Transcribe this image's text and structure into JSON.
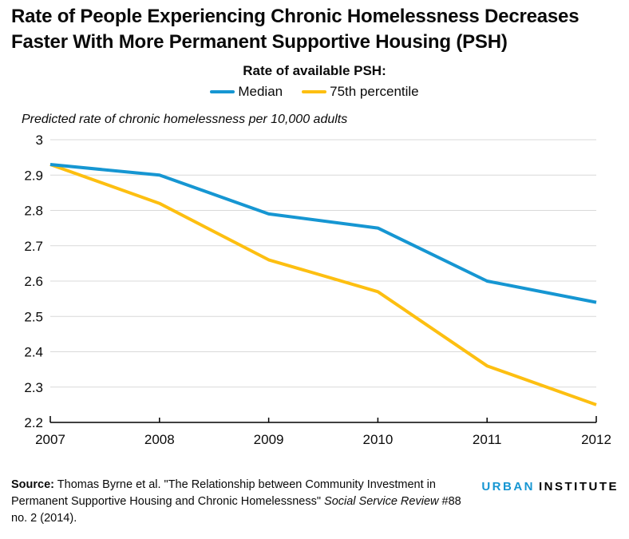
{
  "chart_data": {
    "type": "line",
    "title": "Rate of People Experiencing Chronic Homelessness Decreases Faster With More Permanent Supportive Housing (PSH)",
    "legend_title": "Rate of available PSH:",
    "unit_label": "Predicted rate of chronic homelessness per 10,000 adults",
    "categories": [
      "2007",
      "2008",
      "2009",
      "2010",
      "2011",
      "2012"
    ],
    "series": [
      {
        "name": "Median",
        "color": "#1696d2",
        "values": [
          2.93,
          2.9,
          2.79,
          2.75,
          2.6,
          2.54
        ]
      },
      {
        "name": "75th percentile",
        "color": "#fdbf11",
        "values": [
          2.93,
          2.82,
          2.66,
          2.57,
          2.36,
          2.25
        ]
      }
    ],
    "xlabel": "",
    "ylabel": "Predicted rate of chronic homelessness per 10,000 adults",
    "ylim": [
      2.2,
      3.0
    ],
    "y_ticks": [
      "3",
      "2.9",
      "2.8",
      "2.7",
      "2.6",
      "2.5",
      "2.4",
      "2.3",
      "2.2"
    ],
    "y_tick_values": [
      3.0,
      2.9,
      2.8,
      2.7,
      2.6,
      2.5,
      2.4,
      2.3,
      2.2
    ],
    "grid": "horizontal",
    "grid_color": "#d9d9d9",
    "axis_color": "#000000",
    "tick_label_color": "#0a0a0a",
    "legend_position": "top-center"
  },
  "source": {
    "bold_label": "Source:",
    "text_before_italic": " Thomas Byrne et al. \"The Relationship between Community Investment in Permanent Supportive Housing and Chronic Homelessness\" ",
    "italic_text": "Social Service Review",
    "text_after_italic": " #88 no. 2 (2014)."
  },
  "logo": {
    "urban": "URBAN",
    "institute": "INSTITUTE",
    "urban_color": "#1696d2",
    "institute_color": "#000000"
  }
}
